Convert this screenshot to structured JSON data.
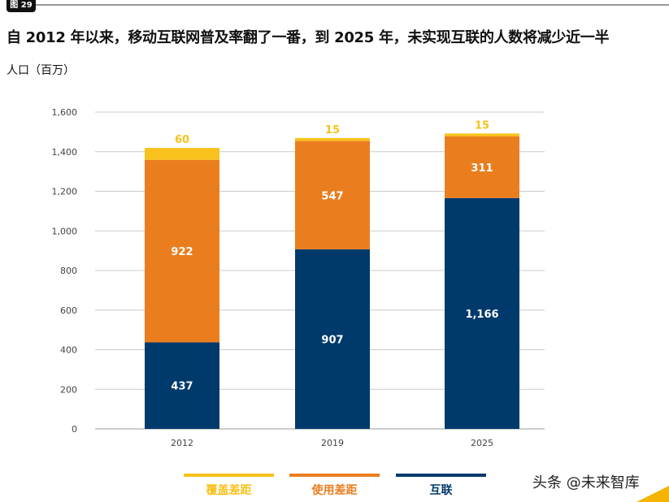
{
  "figure_tag": "图 29",
  "watermark": "头条 @未来智库",
  "colors": {
    "coverage_gap": "#f8c11c",
    "usage_gap": "#ea7e1f",
    "connected": "#003a6c"
  },
  "chart_data": {
    "type": "bar",
    "stacked": true,
    "title": "自 2012 年以来，移动互联网普及率翻了一番，到 2025 年，未实现互联的人数将减少近一半",
    "ylabel": "人口（百万）",
    "xlabel": "",
    "categories": [
      "2012",
      "2019",
      "2025"
    ],
    "ylim": [
      0,
      1600
    ],
    "yticks": [
      "0",
      "200",
      "400",
      "600",
      "800",
      "1,000",
      "1,200",
      "1,400",
      "1,600"
    ],
    "grid": true,
    "legend_position": "bottom",
    "series": [
      {
        "name": "互联",
        "values": [
          437,
          907,
          1166
        ],
        "labels": [
          "437",
          "907",
          "1,166"
        ],
        "color": "#003a6c"
      },
      {
        "name": "使用差距",
        "values": [
          922,
          547,
          311
        ],
        "labels": [
          "922",
          "547",
          "311"
        ],
        "color": "#ea7e1f"
      },
      {
        "name": "覆盖差距",
        "values": [
          60,
          15,
          15
        ],
        "labels": [
          "60",
          "15",
          "15"
        ],
        "color": "#f8c11c"
      }
    ]
  }
}
